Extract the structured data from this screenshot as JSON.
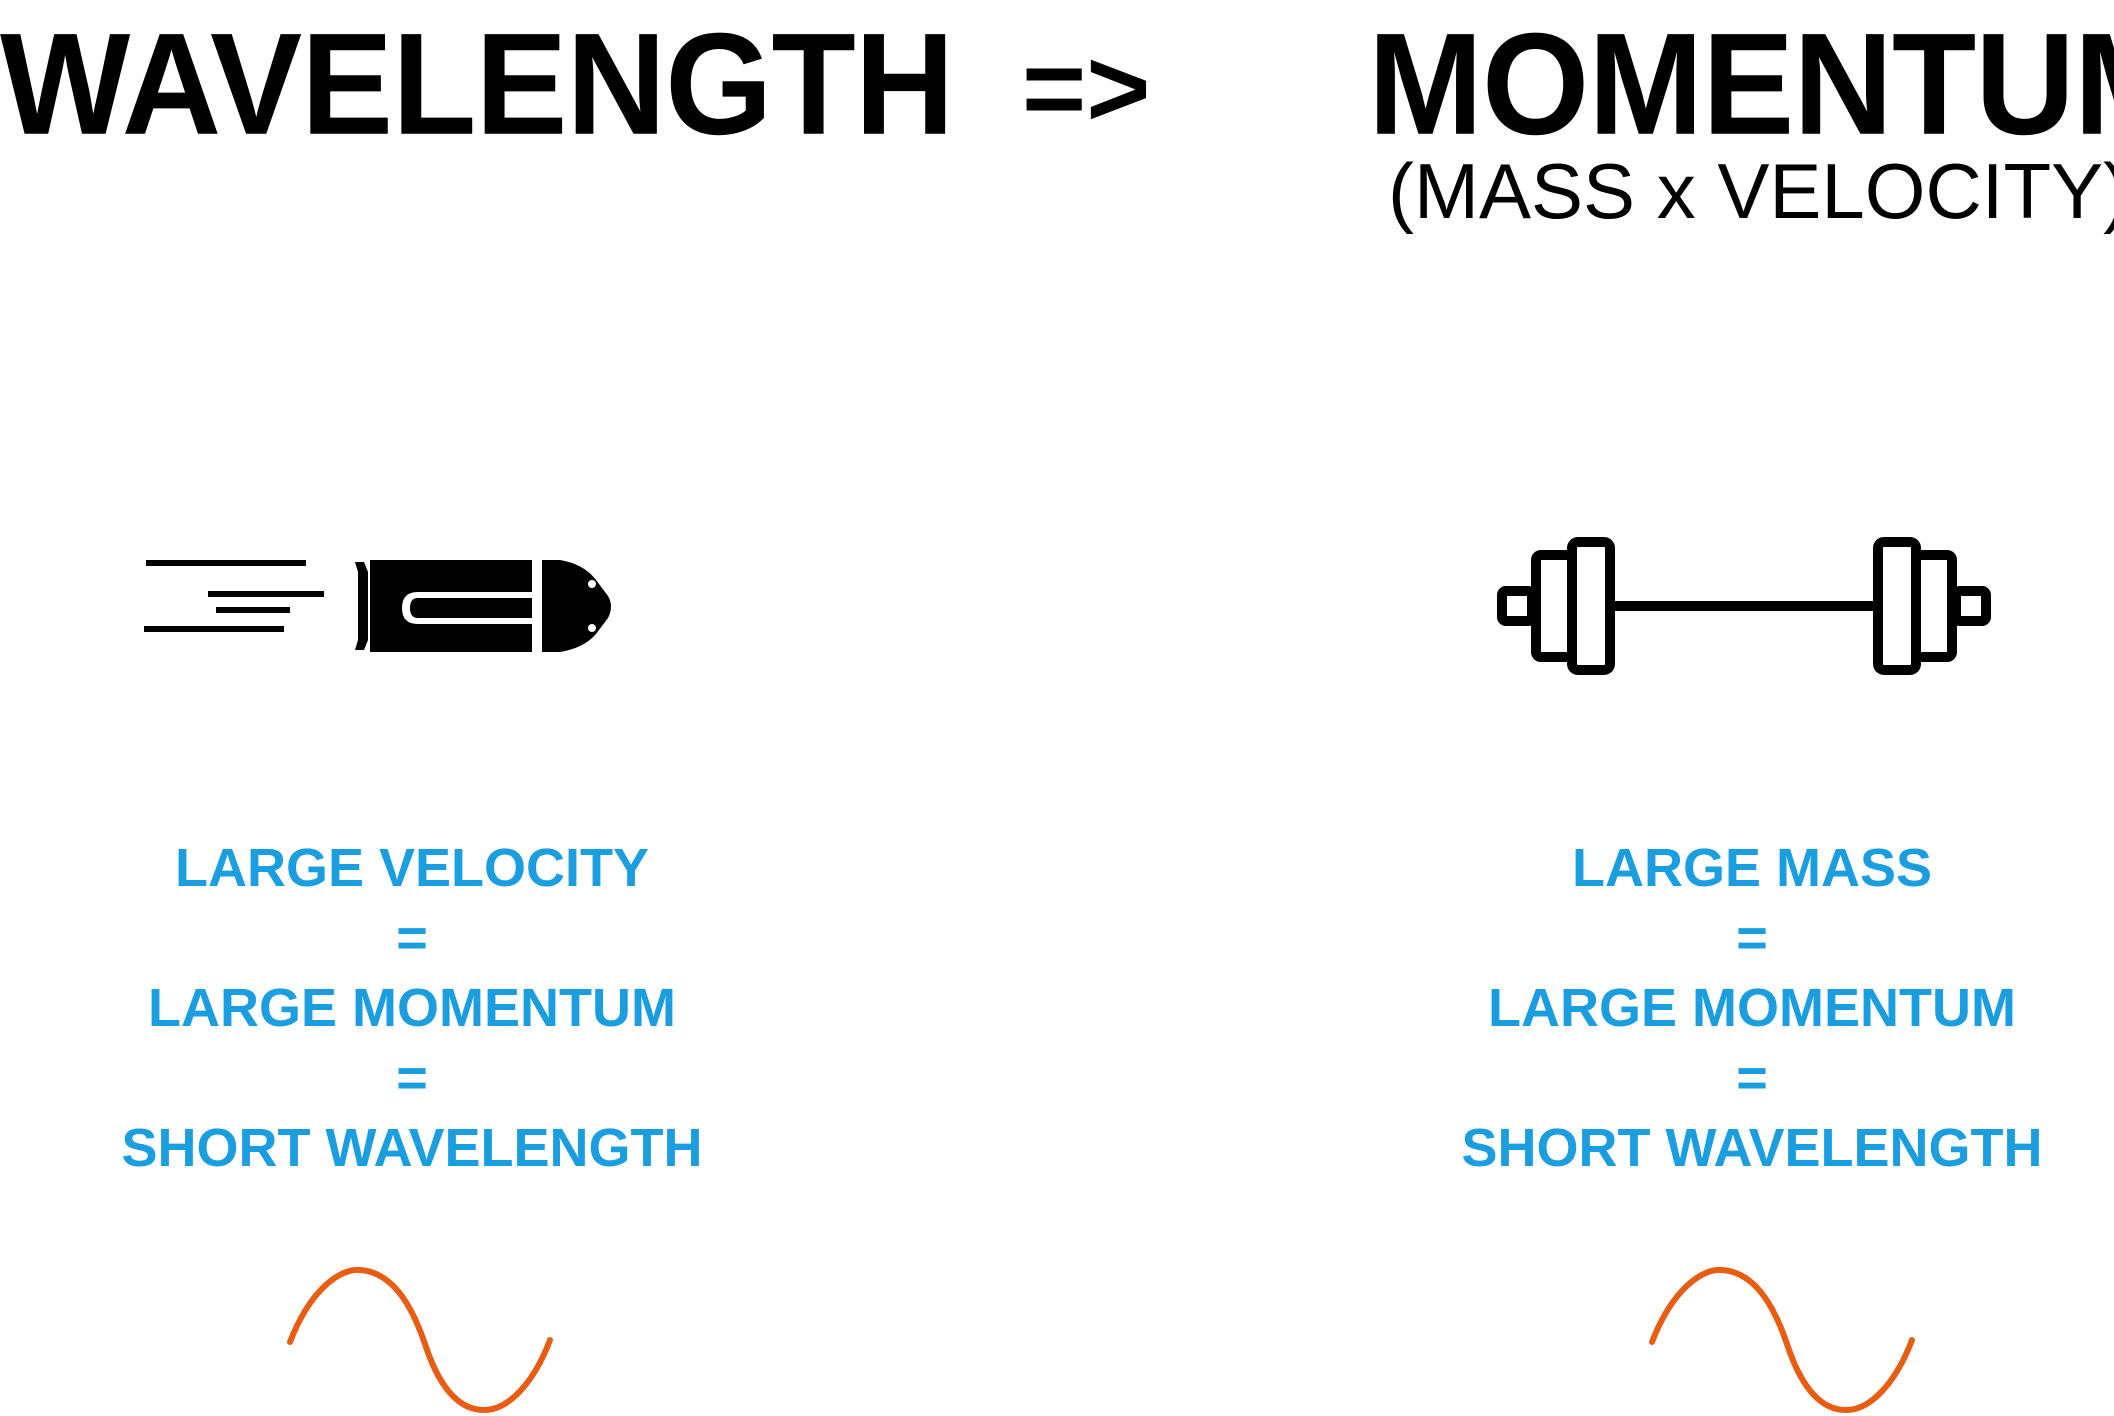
{
  "colors": {
    "heading": "#000000",
    "emphasis": "#1a9ee0",
    "wave": "#e85d12"
  },
  "header": {
    "left_title": "WAVELENGTH",
    "arrow": "=>",
    "right_title": "MOMENTUM",
    "right_subtitle": "(MASS x VELOCITY)"
  },
  "left_panel": {
    "icon": "bullet-icon",
    "lines": [
      "LARGE VELOCITY",
      "=",
      "LARGE MOMENTUM",
      "=",
      "SHORT WAVELENGTH"
    ],
    "wave_icon": "sine-wave-icon"
  },
  "right_panel": {
    "icon": "barbell-icon",
    "lines": [
      "LARGE MASS",
      "=",
      "LARGE MOMENTUM",
      "=",
      "SHORT WAVELENGTH"
    ],
    "wave_icon": "sine-wave-icon"
  }
}
